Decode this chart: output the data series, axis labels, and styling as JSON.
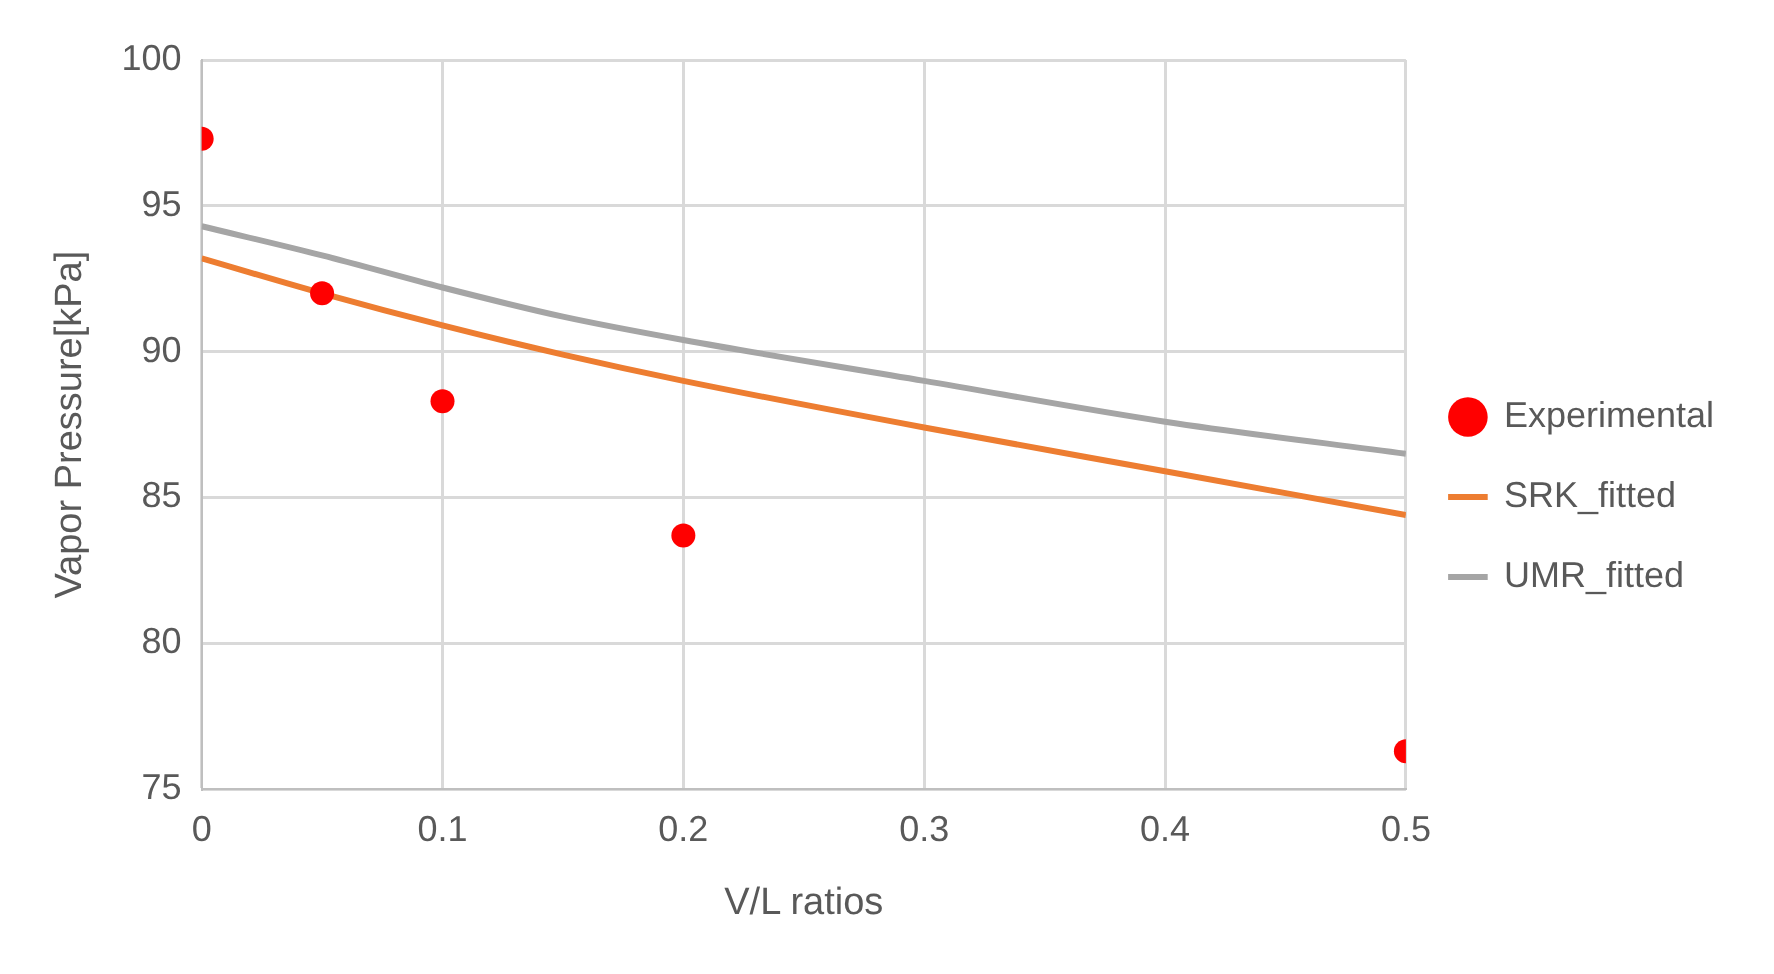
{
  "chart_data": {
    "type": "line",
    "xlabel": "V/L ratios",
    "ylabel": "Vapor Pressure[kPa]",
    "xlim": [
      0,
      0.5
    ],
    "xticks": [
      0,
      0.1,
      0.2,
      0.3,
      0.4,
      0.5
    ],
    "ylim": [
      75,
      100
    ],
    "yticks": [
      75,
      80,
      85,
      90,
      95,
      100
    ],
    "grid": true,
    "legend": "right",
    "line_style": "solid",
    "series": [
      {
        "name": "Experimental",
        "type": "scatter",
        "marker": "circle",
        "color": "#ff0000",
        "x": [
          0,
          0.05,
          0.1,
          0.2,
          0.5
        ],
        "values": [
          97.3,
          92.0,
          88.3,
          83.7,
          76.3
        ]
      },
      {
        "name": "SRK_fitted",
        "marker": "none",
        "color": "#ed7d31",
        "x": [
          0,
          0.05,
          0.1,
          0.15,
          0.2,
          0.3,
          0.4,
          0.5
        ],
        "values": [
          93.2,
          92.0,
          90.9,
          89.9,
          89.0,
          87.4,
          85.9,
          84.4
        ]
      },
      {
        "name": "UMR_fitted",
        "marker": "none",
        "color": "#a5a5a5",
        "x": [
          0,
          0.05,
          0.1,
          0.15,
          0.2,
          0.3,
          0.4,
          0.5
        ],
        "values": [
          94.3,
          93.3,
          92.2,
          91.2,
          90.4,
          89.0,
          87.6,
          86.5
        ]
      }
    ]
  }
}
